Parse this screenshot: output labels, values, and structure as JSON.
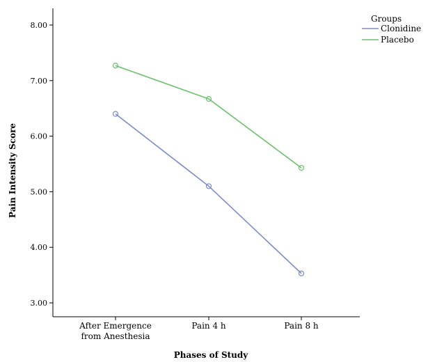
{
  "chart_data": {
    "type": "line",
    "xlabel": "Phases of Study",
    "ylabel": "Pain Intensity Score",
    "categories": [
      [
        "After Emergence",
        "from Anesthesia"
      ],
      [
        "Pain 4 h"
      ],
      [
        "Pain 8 h"
      ]
    ],
    "y_ticks": [
      3.0,
      4.0,
      5.0,
      6.0,
      7.0,
      8.0
    ],
    "y_tick_labels": [
      "3.00",
      "4.00",
      "5.00",
      "6.00",
      "7.00",
      "8.00"
    ],
    "ylim": [
      2.75,
      8.3
    ],
    "grid": false,
    "legend": {
      "title": "Groups",
      "placement": "top-right"
    },
    "series": [
      {
        "name": "Clonidine",
        "color": "#7b8ac8",
        "values": [
          6.4,
          5.1,
          3.53
        ]
      },
      {
        "name": "Placebo",
        "color": "#6bc26b",
        "values": [
          7.27,
          6.67,
          5.43
        ]
      }
    ]
  }
}
